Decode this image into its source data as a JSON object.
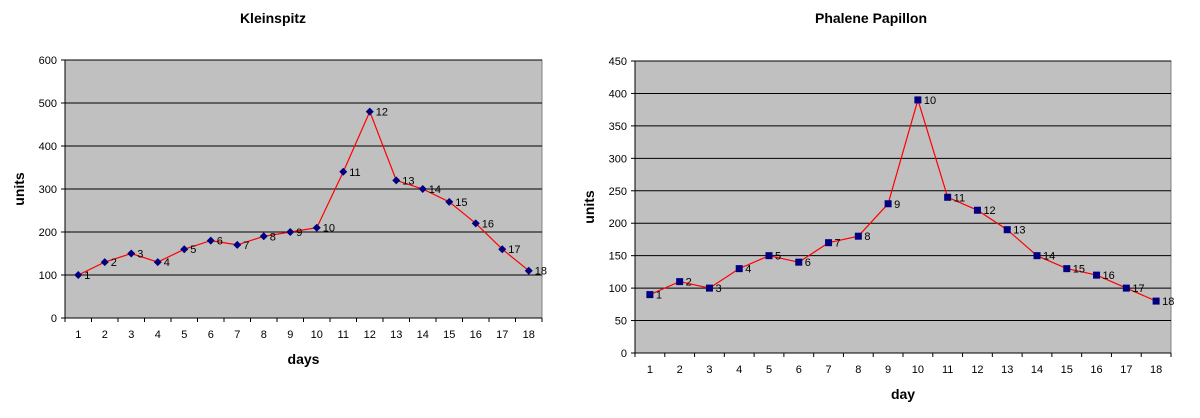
{
  "chart_data": [
    {
      "type": "line",
      "title": "Kleinspitz",
      "xlabel": "days",
      "ylabel": "units",
      "x": [
        1,
        2,
        3,
        4,
        5,
        6,
        7,
        8,
        9,
        10,
        11,
        12,
        13,
        14,
        15,
        16,
        17,
        18
      ],
      "series": [
        {
          "values": [
            100,
            130,
            150,
            130,
            160,
            180,
            170,
            190,
            200,
            210,
            340,
            480,
            320,
            300,
            270,
            220,
            160,
            110
          ]
        }
      ],
      "ylim": [
        0,
        600
      ],
      "ystep": 100,
      "marker": "diamond",
      "grid": true,
      "colors": {
        "line": "#ff0000",
        "marker": "#000080",
        "plot_bg": "#c0c0c0",
        "grid": "#000000"
      }
    },
    {
      "type": "line",
      "title": "Phalene Papillon",
      "xlabel": "day",
      "ylabel": "units",
      "x": [
        1,
        2,
        3,
        4,
        5,
        6,
        7,
        8,
        9,
        10,
        11,
        12,
        13,
        14,
        15,
        16,
        17,
        18
      ],
      "series": [
        {
          "values": [
            90,
            110,
            100,
            130,
            150,
            140,
            170,
            180,
            230,
            390,
            240,
            220,
            190,
            150,
            130,
            120,
            100,
            80
          ]
        }
      ],
      "ylim": [
        0,
        450
      ],
      "ystep": 50,
      "marker": "square",
      "grid": true,
      "colors": {
        "line": "#ff0000",
        "marker": "#000080",
        "plot_bg": "#c0c0c0",
        "grid": "#000000"
      }
    }
  ]
}
